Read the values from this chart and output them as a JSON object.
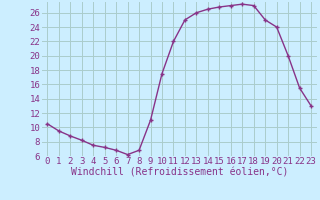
{
  "x": [
    0,
    1,
    2,
    3,
    4,
    5,
    6,
    7,
    8,
    9,
    10,
    11,
    12,
    13,
    14,
    15,
    16,
    17,
    18,
    19,
    20,
    21,
    22,
    23
  ],
  "y": [
    10.5,
    9.5,
    8.8,
    8.2,
    7.5,
    7.2,
    6.8,
    6.2,
    6.8,
    11.0,
    17.5,
    22.0,
    25.0,
    26.0,
    26.5,
    26.8,
    27.0,
    27.2,
    27.0,
    25.0,
    24.0,
    20.0,
    15.5,
    13.0
  ],
  "line_color": "#883388",
  "marker": "+",
  "bg_color": "#cceeff",
  "grid_color": "#aacccc",
  "xlabel": "Windchill (Refroidissement éolien,°C)",
  "xlim_min": -0.5,
  "xlim_max": 23.5,
  "ylim_min": 6,
  "ylim_max": 27.5,
  "yticks": [
    6,
    8,
    10,
    12,
    14,
    16,
    18,
    20,
    22,
    24,
    26
  ],
  "xticks": [
    0,
    1,
    2,
    3,
    4,
    5,
    6,
    7,
    8,
    9,
    10,
    11,
    12,
    13,
    14,
    15,
    16,
    17,
    18,
    19,
    20,
    21,
    22,
    23
  ],
  "xlabel_fontsize": 7,
  "tick_fontsize": 6.5,
  "marker_size": 3.5,
  "line_width": 1.0
}
